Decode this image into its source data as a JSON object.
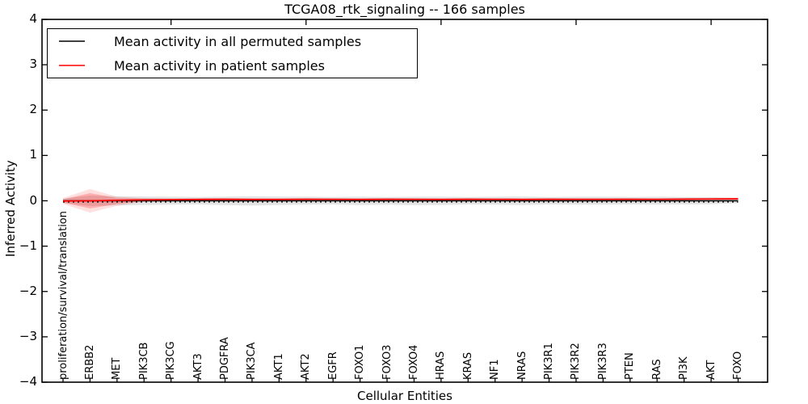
{
  "title": "TCGA08_rtk_signaling -- 166 samples",
  "legend": {
    "items": [
      {
        "label": "Mean activity in all permuted samples",
        "color": "#000000"
      },
      {
        "label": "Mean activity in patient samples",
        "color": "#ff0000"
      }
    ]
  },
  "axes": {
    "y_label": "Inferred Activity",
    "x_label": "Cellular Entities",
    "y_tick_labels": [
      "4",
      "3",
      "2",
      "1",
      "0",
      "−1",
      "−2",
      "−3",
      "−4"
    ]
  },
  "chart_data": {
    "type": "line",
    "title": "TCGA08_rtk_signaling -- 166 samples",
    "xlabel": "Cellular Entities",
    "ylabel": "Inferred Activity",
    "ylim": [
      -4,
      4
    ],
    "grid": false,
    "legend_position": "upper left",
    "categories": [
      "proliferation/survival/translation",
      "ERBB2",
      "MET",
      "PIK3CB",
      "PIK3CG",
      "AKT3",
      "PDGFRA",
      "PIK3CA",
      "AKT1",
      "AKT2",
      "EGFR",
      "FOXO1",
      "FOXO3",
      "FOXO4",
      "HRAS",
      "KRAS",
      "NF1",
      "NRAS",
      "PIK3R1",
      "PIK3R2",
      "PIK3R3",
      "PTEN",
      "RAS",
      "PI3K",
      "AKT",
      "FOXO"
    ],
    "series": [
      {
        "name": "Mean activity in all permuted samples",
        "color": "#000000",
        "style": "solid",
        "values": [
          0,
          0,
          0,
          0,
          0,
          0,
          0,
          0,
          0,
          0,
          0,
          0,
          0,
          0,
          0,
          0,
          0,
          0,
          0,
          0,
          0,
          0,
          0,
          0,
          0,
          0
        ]
      },
      {
        "name": "Mean activity in patient samples",
        "color": "#ff0000",
        "style": "solid",
        "values": [
          -0.005,
          0.0,
          0.01,
          0.02,
          0.025,
          0.03,
          0.032,
          0.03,
          0.03,
          0.032,
          0.032,
          0.03,
          0.032,
          0.032,
          0.03,
          0.032,
          0.032,
          0.03,
          0.032,
          0.032,
          0.032,
          0.032,
          0.032,
          0.035,
          0.04,
          0.042
        ]
      }
    ],
    "reference_lines": [
      {
        "name": "zero-reference",
        "y": 0,
        "color": "#000000",
        "style": "dashed"
      }
    ],
    "bands": [
      {
        "name": "permuted-activity-range",
        "color": "#999999",
        "opacity": 0.28,
        "upper": [
          0.05,
          0.115,
          0.1,
          0.095,
          0.09,
          0.085,
          0.09,
          0.1,
          0.095,
          0.09,
          0.085,
          0.09,
          0.085,
          0.09,
          0.09,
          0.085,
          0.09,
          0.095,
          0.085,
          0.09,
          0.09,
          0.085,
          0.09,
          0.085,
          0.08,
          0.06
        ],
        "lower": [
          -0.05,
          -0.115,
          -0.1,
          -0.09,
          -0.085,
          -0.08,
          -0.095,
          -0.105,
          -0.09,
          -0.085,
          -0.08,
          -0.095,
          -0.085,
          -0.095,
          -0.09,
          -0.08,
          -0.085,
          -0.095,
          -0.08,
          -0.085,
          -0.085,
          -0.08,
          -0.085,
          -0.08,
          -0.075,
          -0.055
        ]
      },
      {
        "name": "patient-activity-range-outer",
        "color": "#ff0000",
        "opacity": 0.12,
        "upper": [
          0.06,
          0.26,
          0.09,
          0.055,
          0.05,
          0.055,
          0.06,
          0.055,
          0.055,
          0.06,
          0.055,
          0.055,
          0.06,
          0.055,
          0.055,
          0.06,
          0.055,
          0.055,
          0.06,
          0.055,
          0.055,
          0.06,
          0.055,
          0.06,
          0.065,
          0.07
        ],
        "lower": [
          -0.07,
          -0.26,
          -0.11,
          -0.02,
          -0.01,
          0.0,
          0.005,
          0.0,
          0.005,
          0.01,
          0.01,
          0.005,
          0.01,
          0.01,
          0.005,
          0.01,
          0.01,
          0.005,
          0.01,
          0.01,
          0.01,
          0.01,
          0.01,
          0.015,
          0.02,
          0.02
        ]
      },
      {
        "name": "patient-activity-range-inner",
        "color": "#ff0000",
        "opacity": 0.22,
        "upper": [
          0.03,
          0.17,
          0.06,
          0.05,
          0.045,
          0.05,
          0.055,
          0.05,
          0.05,
          0.055,
          0.05,
          0.05,
          0.055,
          0.05,
          0.05,
          0.055,
          0.05,
          0.05,
          0.055,
          0.05,
          0.05,
          0.055,
          0.05,
          0.055,
          0.055,
          0.06
        ],
        "lower": [
          -0.04,
          -0.17,
          -0.07,
          -0.005,
          0.005,
          0.01,
          0.015,
          0.01,
          0.015,
          0.02,
          0.02,
          0.015,
          0.02,
          0.02,
          0.015,
          0.02,
          0.02,
          0.015,
          0.02,
          0.02,
          0.02,
          0.02,
          0.02,
          0.025,
          0.03,
          0.03
        ]
      }
    ]
  }
}
